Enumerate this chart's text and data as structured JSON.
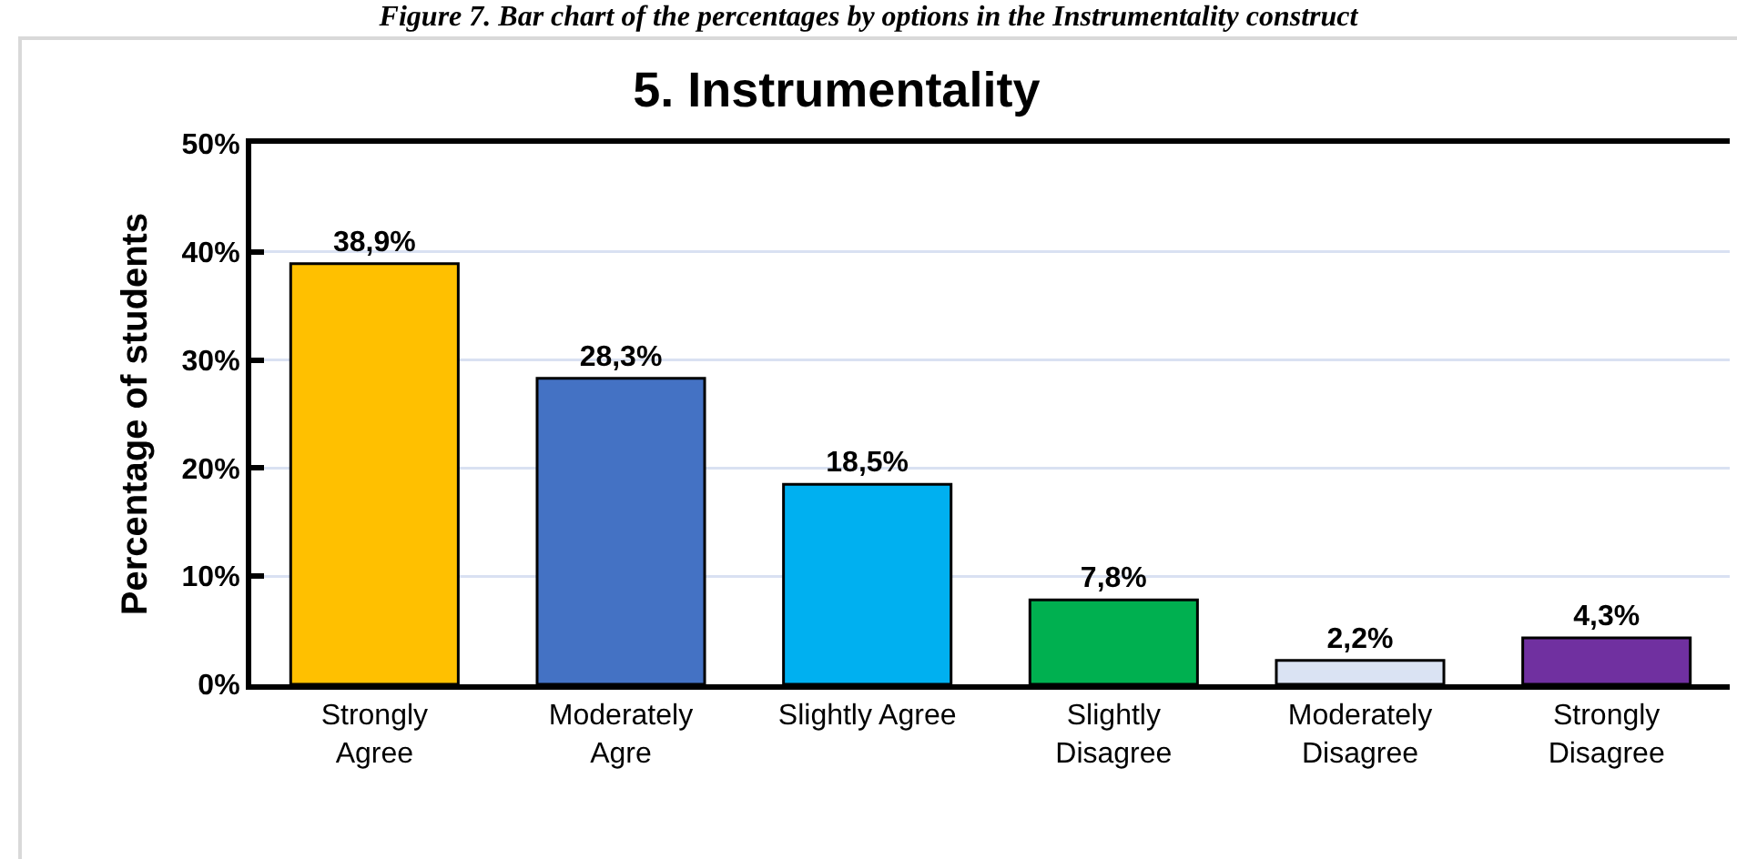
{
  "chart_data": {
    "type": "bar",
    "title": "5. Instrumentality",
    "ylabel": "Percentage of students",
    "annotations": [
      "Figure 7. Bar chart of the percentages by options in the Instrumentality construct"
    ],
    "categories": [
      "Strongly\nAgree",
      "Moderately\nAgre",
      "Slightly Agree",
      "Slightly\nDisagree",
      "Moderately\nDisagree",
      "Strongly\nDisagree"
    ],
    "values": [
      38.9,
      28.3,
      18.5,
      7.8,
      2.2,
      4.3
    ],
    "value_labels": [
      "38,9%",
      "28,3%",
      "18,5%",
      "7,8%",
      "2,2%",
      "4,3%"
    ],
    "colors": [
      "#ffc000",
      "#4472c4",
      "#00b0f0",
      "#00b050",
      "#dae3f3",
      "#7030a0"
    ],
    "ylim": [
      0,
      50
    ],
    "yticks": [
      {
        "value": 0,
        "label": "0%"
      },
      {
        "value": 10,
        "label": "10%"
      },
      {
        "value": 20,
        "label": "20%"
      },
      {
        "value": 30,
        "label": "30%"
      },
      {
        "value": 40,
        "label": "40%"
      },
      {
        "value": 50,
        "label": "50%"
      }
    ],
    "grid": "y"
  }
}
